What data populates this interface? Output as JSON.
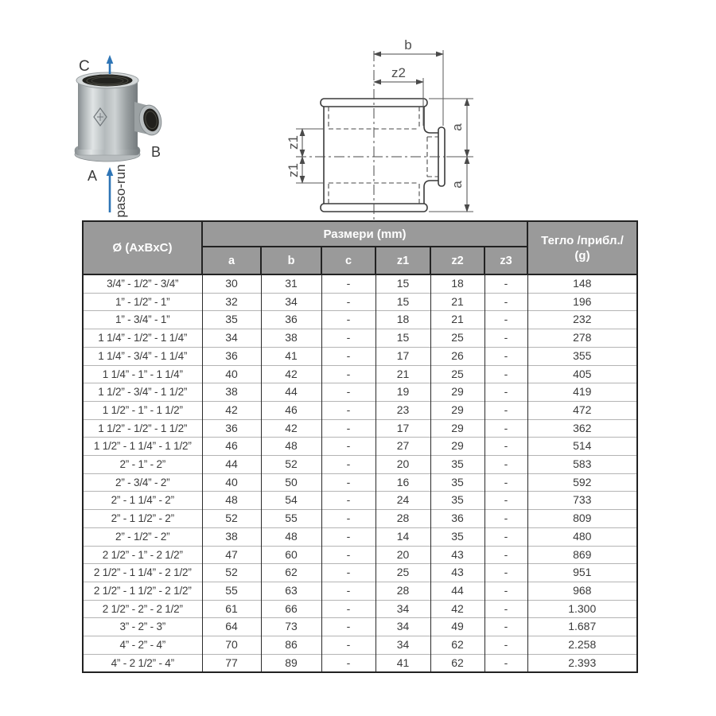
{
  "photo": {
    "port_top_label": "C",
    "port_side_label": "B",
    "port_bottom_label": "A",
    "flow_label": "paso-run",
    "arrow_color": "#2e75b6"
  },
  "diagram": {
    "dim_b_label": "b",
    "dim_z2_label": "z2",
    "dim_z1_top_label": "z1",
    "dim_z1_bottom_label": "z1",
    "dim_a_top_label": "a",
    "dim_a_bottom_label": "a"
  },
  "table": {
    "size_header": "Ø (AxBxC)",
    "dimensions_header": "Размери (mm)",
    "weight_header_line1": "Тегло /прибл./",
    "weight_header_line2": "(g)",
    "sub_headers": [
      "a",
      "b",
      "c",
      "z1",
      "z2",
      "z3"
    ],
    "rows": [
      [
        "3/4” - 1/2” - 3/4”",
        "30",
        "31",
        "-",
        "15",
        "18",
        "-",
        "148"
      ],
      [
        "1” - 1/2” - 1”",
        "32",
        "34",
        "-",
        "15",
        "21",
        "-",
        "196"
      ],
      [
        "1” - 3/4” - 1”",
        "35",
        "36",
        "-",
        "18",
        "21",
        "-",
        "232"
      ],
      [
        "1 1/4” - 1/2” - 1 1/4”",
        "34",
        "38",
        "-",
        "15",
        "25",
        "-",
        "278"
      ],
      [
        "1 1/4” - 3/4” - 1 1/4”",
        "36",
        "41",
        "-",
        "17",
        "26",
        "-",
        "355"
      ],
      [
        "1 1/4” - 1” - 1 1/4”",
        "40",
        "42",
        "-",
        "21",
        "25",
        "-",
        "405"
      ],
      [
        "1 1/2” - 3/4” - 1 1/2”",
        "38",
        "44",
        "-",
        "19",
        "29",
        "-",
        "419"
      ],
      [
        "1 1/2” - 1” - 1 1/2”",
        "42",
        "46",
        "-",
        "23",
        "29",
        "-",
        "472"
      ],
      [
        "1 1/2” - 1/2” - 1 1/2”",
        "36",
        "42",
        "-",
        "17",
        "29",
        "-",
        "362"
      ],
      [
        "1 1/2” - 1 1/4” - 1 1/2”",
        "46",
        "48",
        "-",
        "27",
        "29",
        "-",
        "514"
      ],
      [
        "2” - 1” - 2”",
        "44",
        "52",
        "-",
        "20",
        "35",
        "-",
        "583"
      ],
      [
        "2” - 3/4” - 2”",
        "40",
        "50",
        "-",
        "16",
        "35",
        "-",
        "592"
      ],
      [
        "2” - 1 1/4” - 2”",
        "48",
        "54",
        "-",
        "24",
        "35",
        "-",
        "733"
      ],
      [
        "2” - 1 1/2” - 2”",
        "52",
        "55",
        "-",
        "28",
        "36",
        "-",
        "809"
      ],
      [
        "2” - 1/2” - 2”",
        "38",
        "48",
        "-",
        "14",
        "35",
        "-",
        "480"
      ],
      [
        "2 1/2” - 1” - 2 1/2”",
        "47",
        "60",
        "-",
        "20",
        "43",
        "-",
        "869"
      ],
      [
        "2 1/2” - 1 1/4” - 2 1/2”",
        "52",
        "62",
        "-",
        "25",
        "43",
        "-",
        "951"
      ],
      [
        "2 1/2” - 1 1/2” - 2 1/2”",
        "55",
        "63",
        "-",
        "28",
        "44",
        "-",
        "968"
      ],
      [
        "2 1/2” - 2” - 2 1/2”",
        "61",
        "66",
        "-",
        "34",
        "42",
        "-",
        "1.300"
      ],
      [
        "3” - 2” - 3”",
        "64",
        "73",
        "-",
        "34",
        "49",
        "-",
        "1.687"
      ],
      [
        "4” - 2” - 4”",
        "70",
        "86",
        "-",
        "34",
        "62",
        "-",
        "2.258"
      ],
      [
        "4” - 2 1/2” - 4”",
        "77",
        "89",
        "-",
        "41",
        "62",
        "-",
        "2.393"
      ]
    ],
    "colors": {
      "header_bg": "#9a9a9a",
      "header_text": "#ffffff",
      "dark_border": "#222222",
      "row_divider": "#b4b4b4",
      "cell_text": "#3b3b3b"
    }
  }
}
